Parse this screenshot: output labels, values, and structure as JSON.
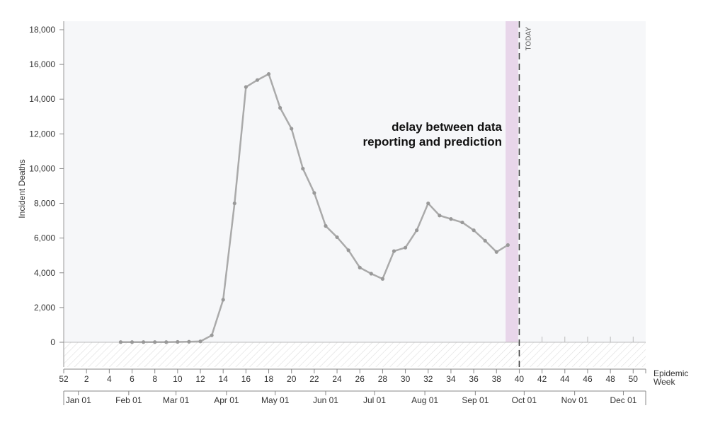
{
  "chart_data": {
    "type": "line",
    "ylabel": "Incident Deaths",
    "xlabel": "Epidemic Week",
    "ylim": [
      0,
      18000
    ],
    "ytick_values": [
      0,
      2000,
      4000,
      6000,
      8000,
      10000,
      12000,
      14000,
      16000,
      18000
    ],
    "ytick_labels": [
      "0",
      "2,000",
      "4,000",
      "6,000",
      "8,000",
      "10,000",
      "12,000",
      "14,000",
      "16,000",
      "18,000"
    ],
    "week_ticks": [
      {
        "label": "52",
        "week": 0
      },
      {
        "label": "2",
        "week": 2
      },
      {
        "label": "4",
        "week": 4
      },
      {
        "label": "6",
        "week": 6
      },
      {
        "label": "8",
        "week": 8
      },
      {
        "label": "10",
        "week": 10
      },
      {
        "label": "12",
        "week": 12
      },
      {
        "label": "14",
        "week": 14
      },
      {
        "label": "16",
        "week": 16
      },
      {
        "label": "18",
        "week": 18
      },
      {
        "label": "20",
        "week": 20
      },
      {
        "label": "22",
        "week": 22
      },
      {
        "label": "24",
        "week": 24
      },
      {
        "label": "26",
        "week": 26
      },
      {
        "label": "28",
        "week": 28
      },
      {
        "label": "30",
        "week": 30
      },
      {
        "label": "32",
        "week": 32
      },
      {
        "label": "34",
        "week": 34
      },
      {
        "label": "36",
        "week": 36
      },
      {
        "label": "38",
        "week": 38
      },
      {
        "label": "40",
        "week": 40
      },
      {
        "label": "42",
        "week": 42
      },
      {
        "label": "44",
        "week": 44
      },
      {
        "label": "46",
        "week": 46
      },
      {
        "label": "48",
        "week": 48
      },
      {
        "label": "50",
        "week": 50
      }
    ],
    "month_ticks": [
      {
        "label": "Jan 01",
        "week": 1.29
      },
      {
        "label": "Feb 01",
        "week": 5.71
      },
      {
        "label": "Mar 01",
        "week": 9.86
      },
      {
        "label": "Apr 01",
        "week": 14.29
      },
      {
        "label": "May 01",
        "week": 18.57
      },
      {
        "label": "Jun 01",
        "week": 23.0
      },
      {
        "label": "Jul 01",
        "week": 27.29
      },
      {
        "label": "Aug 01",
        "week": 31.71
      },
      {
        "label": "Sep 01",
        "week": 36.14
      },
      {
        "label": "Oct 01",
        "week": 40.43
      },
      {
        "label": "Nov 01",
        "week": 44.86
      },
      {
        "label": "Dec 01",
        "week": 49.14
      }
    ],
    "xlim": [
      0,
      51.1
    ],
    "series": [
      {
        "x": [
          5,
          6,
          7,
          8,
          9,
          10,
          11,
          12,
          13,
          14,
          15,
          16,
          17,
          18,
          19,
          20,
          21,
          22,
          23,
          24,
          25,
          26,
          27,
          28,
          29,
          30,
          31,
          32,
          33,
          34,
          35,
          36,
          37,
          38,
          39
        ],
        "values": [
          10,
          10,
          10,
          10,
          10,
          20,
          30,
          50,
          400,
          2450,
          8000,
          14700,
          15100,
          15450,
          13500,
          12300,
          10000,
          8600,
          6700,
          6050,
          5300,
          4300,
          3950,
          3650,
          5250,
          5450,
          6450,
          8000,
          7300,
          7100,
          6900,
          6450,
          5850,
          5200,
          5600
        ],
        "color": "#aaaaaa"
      }
    ],
    "delay_band": {
      "from_week": 38.8,
      "to_week": 39.9,
      "color": "#e8d6ea"
    },
    "today": {
      "label": "TODAY",
      "week": 40
    },
    "annotation": {
      "line1": "delay between data",
      "line2": "reporting and prediction"
    },
    "colors": {
      "plot_bg": "#f6f7f9",
      "line": "#aaaaaa",
      "point": "#999999",
      "axis": "#888888",
      "hatch": "#dddddd"
    }
  }
}
